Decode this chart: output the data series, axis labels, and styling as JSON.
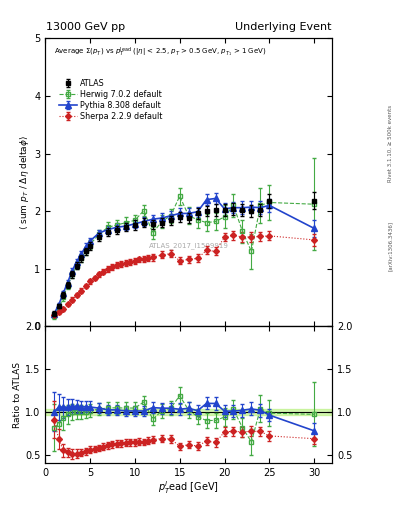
{
  "title_left": "13000 GeV pp",
  "title_right": "Underlying Event",
  "right_label": "Rivet 3.1.10, ≥ 500k events",
  "arxiv_label": "[arXiv:1306.3436]",
  "watermark": "ATLAS_2017_I1509919",
  "main_ylabel": "⟨ sum p_T / Δη deltaφ⟩",
  "ratio_ylabel": "Ratio to ATLAS",
  "xlabel": "p_T^{l}ead [GeV]",
  "ylim_main": [
    0,
    5
  ],
  "ylim_ratio": [
    0.4,
    2.0
  ],
  "xlim": [
    0,
    32
  ],
  "atlas_x": [
    1.0,
    1.5,
    2.0,
    2.5,
    3.0,
    3.5,
    4.0,
    4.5,
    5.0,
    6.0,
    7.0,
    8.0,
    9.0,
    10.0,
    11.0,
    12.0,
    13.0,
    14.0,
    15.0,
    16.0,
    17.0,
    18.0,
    19.0,
    20.0,
    21.0,
    22.0,
    23.0,
    24.0,
    25.0,
    30.0
  ],
  "atlas_y": [
    0.22,
    0.35,
    0.54,
    0.72,
    0.9,
    1.05,
    1.18,
    1.3,
    1.4,
    1.55,
    1.64,
    1.68,
    1.72,
    1.76,
    1.8,
    1.77,
    1.8,
    1.84,
    1.9,
    1.88,
    1.96,
    2.0,
    2.02,
    2.02,
    2.04,
    2.02,
    2.0,
    2.02,
    2.18,
    2.18
  ],
  "atlas_yerr": [
    0.04,
    0.04,
    0.05,
    0.05,
    0.06,
    0.06,
    0.06,
    0.06,
    0.07,
    0.07,
    0.07,
    0.07,
    0.07,
    0.08,
    0.08,
    0.08,
    0.08,
    0.08,
    0.09,
    0.09,
    0.09,
    0.09,
    0.1,
    0.1,
    0.1,
    0.1,
    0.1,
    0.1,
    0.12,
    0.15
  ],
  "herwig_x": [
    1.0,
    1.5,
    2.0,
    2.5,
    3.0,
    3.5,
    4.0,
    4.5,
    5.0,
    6.0,
    7.0,
    8.0,
    9.0,
    10.0,
    11.0,
    12.0,
    13.0,
    14.0,
    15.0,
    16.0,
    17.0,
    18.0,
    19.0,
    20.0,
    21.0,
    22.0,
    23.0,
    24.0,
    25.0,
    30.0
  ],
  "herwig_y": [
    0.18,
    0.3,
    0.5,
    0.7,
    0.9,
    1.05,
    1.18,
    1.3,
    1.42,
    1.6,
    1.72,
    1.76,
    1.8,
    1.84,
    2.01,
    1.62,
    1.82,
    1.92,
    2.26,
    1.92,
    1.85,
    1.8,
    1.82,
    1.9,
    2.1,
    1.65,
    1.3,
    2.1,
    2.15,
    2.12
  ],
  "herwig_yerr": [
    0.05,
    0.05,
    0.06,
    0.06,
    0.06,
    0.06,
    0.07,
    0.07,
    0.08,
    0.08,
    0.09,
    0.09,
    0.1,
    0.1,
    0.1,
    0.1,
    0.12,
    0.12,
    0.15,
    0.15,
    0.15,
    0.15,
    0.15,
    0.2,
    0.2,
    0.2,
    0.3,
    0.3,
    0.3,
    0.8
  ],
  "pythia_x": [
    1.0,
    1.5,
    2.0,
    2.5,
    3.0,
    3.5,
    4.0,
    4.5,
    5.0,
    6.0,
    7.0,
    8.0,
    9.0,
    10.0,
    11.0,
    12.0,
    13.0,
    14.0,
    15.0,
    16.0,
    17.0,
    18.0,
    19.0,
    20.0,
    21.0,
    22.0,
    23.0,
    24.0,
    25.0,
    30.0
  ],
  "pythia_y": [
    0.22,
    0.37,
    0.57,
    0.76,
    0.96,
    1.12,
    1.25,
    1.38,
    1.48,
    1.62,
    1.68,
    1.72,
    1.74,
    1.78,
    1.82,
    1.86,
    1.88,
    1.92,
    1.96,
    1.96,
    1.99,
    2.2,
    2.22,
    2.04,
    2.06,
    2.06,
    2.07,
    2.06,
    2.1,
    1.7
  ],
  "pythia_yerr": [
    0.03,
    0.03,
    0.04,
    0.04,
    0.05,
    0.05,
    0.05,
    0.06,
    0.06,
    0.06,
    0.07,
    0.07,
    0.07,
    0.07,
    0.08,
    0.08,
    0.08,
    0.08,
    0.09,
    0.09,
    0.09,
    0.1,
    0.1,
    0.1,
    0.1,
    0.11,
    0.11,
    0.11,
    0.11,
    0.15
  ],
  "sherpa_x": [
    1.0,
    1.5,
    2.0,
    2.5,
    3.0,
    3.5,
    4.0,
    4.5,
    5.0,
    5.5,
    6.0,
    6.5,
    7.0,
    7.5,
    8.0,
    8.5,
    9.0,
    9.5,
    10.0,
    10.5,
    11.0,
    11.5,
    12.0,
    13.0,
    14.0,
    15.0,
    16.0,
    17.0,
    18.0,
    19.0,
    20.0,
    21.0,
    22.0,
    23.0,
    24.0,
    25.0,
    30.0
  ],
  "sherpa_y": [
    0.2,
    0.24,
    0.3,
    0.38,
    0.46,
    0.54,
    0.62,
    0.7,
    0.78,
    0.84,
    0.9,
    0.95,
    1.0,
    1.03,
    1.06,
    1.08,
    1.1,
    1.12,
    1.14,
    1.16,
    1.17,
    1.18,
    1.2,
    1.24,
    1.26,
    1.14,
    1.16,
    1.18,
    1.32,
    1.3,
    1.55,
    1.58,
    1.55,
    1.55,
    1.56,
    1.57,
    1.5
  ],
  "sherpa_yerr": [
    0.03,
    0.03,
    0.03,
    0.03,
    0.04,
    0.04,
    0.04,
    0.04,
    0.04,
    0.04,
    0.04,
    0.04,
    0.05,
    0.05,
    0.05,
    0.05,
    0.05,
    0.05,
    0.05,
    0.05,
    0.05,
    0.05,
    0.06,
    0.06,
    0.06,
    0.06,
    0.06,
    0.07,
    0.07,
    0.07,
    0.07,
    0.08,
    0.08,
    0.08,
    0.08,
    0.08,
    0.1
  ],
  "atlas_color": "black",
  "herwig_color": "#44aa44",
  "pythia_color": "#2244cc",
  "sherpa_color": "#cc2222",
  "band_color": "#aaee66",
  "band_alpha": 0.5,
  "band_ymin": 0.965,
  "band_ymax": 1.035
}
